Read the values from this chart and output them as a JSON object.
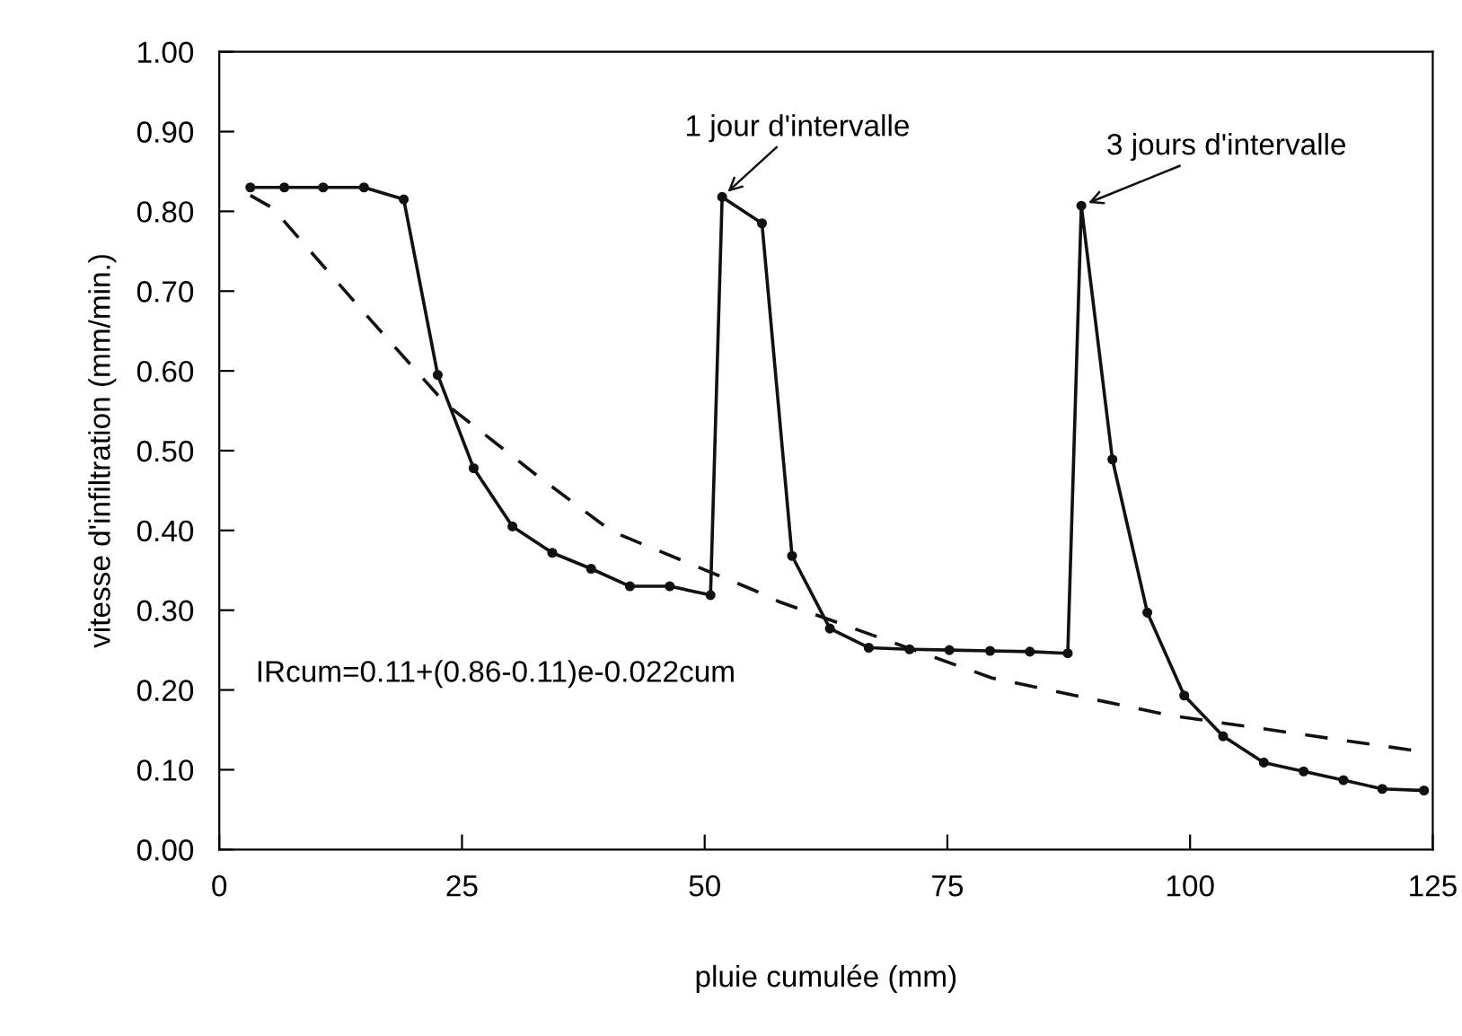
{
  "chart_data": {
    "type": "line",
    "xlabel": "pluie cumulée (mm)",
    "ylabel": "vitesse d'infiltration (mm/min.)",
    "xlim": [
      0,
      125
    ],
    "xticks": [
      0,
      25,
      50,
      75,
      100,
      125
    ],
    "ylim": [
      0,
      1.0
    ],
    "yticks": [
      {
        "value": 0,
        "label": "0.00"
      },
      {
        "value": 0.1,
        "label": "0.10"
      },
      {
        "value": 0.2,
        "label": "0.20"
      },
      {
        "value": 0.3,
        "label": "0.30"
      },
      {
        "value": 0.4,
        "label": "0.40"
      },
      {
        "value": 0.5,
        "label": "0.50"
      },
      {
        "value": 0.6,
        "label": "0.60"
      },
      {
        "value": 0.7,
        "label": "0.70"
      },
      {
        "value": 0.8,
        "label": "0.80"
      },
      {
        "value": 0.9,
        "label": "0.90"
      },
      {
        "value": 1.0,
        "label": "1.00"
      }
    ],
    "grid": false,
    "legend": false,
    "series": [
      {
        "color": "#111111",
        "marker": "circle",
        "line_style": "solid",
        "x": [
          3.2,
          6.7,
          10.7,
          14.9,
          19.0,
          22.5,
          26.2,
          30.2,
          34.3,
          38.3,
          42.3,
          46.4,
          50.6,
          51.8,
          55.9,
          59.0,
          62.9,
          66.9,
          71.1,
          75.2,
          79.4,
          83.5,
          87.4,
          88.8,
          92.0,
          95.6,
          99.4,
          103.4,
          107.6,
          111.7,
          115.8,
          119.8,
          124.1
        ],
        "values": [
          0.83,
          0.83,
          0.83,
          0.83,
          0.815,
          0.595,
          0.478,
          0.405,
          0.372,
          0.352,
          0.33,
          0.33,
          0.319,
          0.818,
          0.785,
          0.368,
          0.277,
          0.253,
          0.251,
          0.25,
          0.249,
          0.248,
          0.246,
          0.807,
          0.489,
          0.297,
          0.193,
          0.142,
          0.109,
          0.098,
          0.087,
          0.076,
          0.074
        ]
      },
      {
        "color": "#111111",
        "marker": "none",
        "line_style": "dashed",
        "x": [
          3.2,
          5.5,
          14.7,
          23.3,
          32.5,
          40.4,
          55.1,
          57.6,
          79.6,
          98.0,
          123.2
        ],
        "values": [
          0.82,
          0.804,
          0.676,
          0.559,
          0.471,
          0.399,
          0.325,
          0.311,
          0.215,
          0.168,
          0.124
        ]
      }
    ],
    "annotations": [
      {
        "text": "1 jour d'intervalle",
        "x": 51.8,
        "y": 0.818
      },
      {
        "text": "3 jours d'intervalle",
        "x": 88.8,
        "y": 0.807
      },
      "IRcum=0.11+(0.86-0.11)e-0.022cum"
    ]
  }
}
